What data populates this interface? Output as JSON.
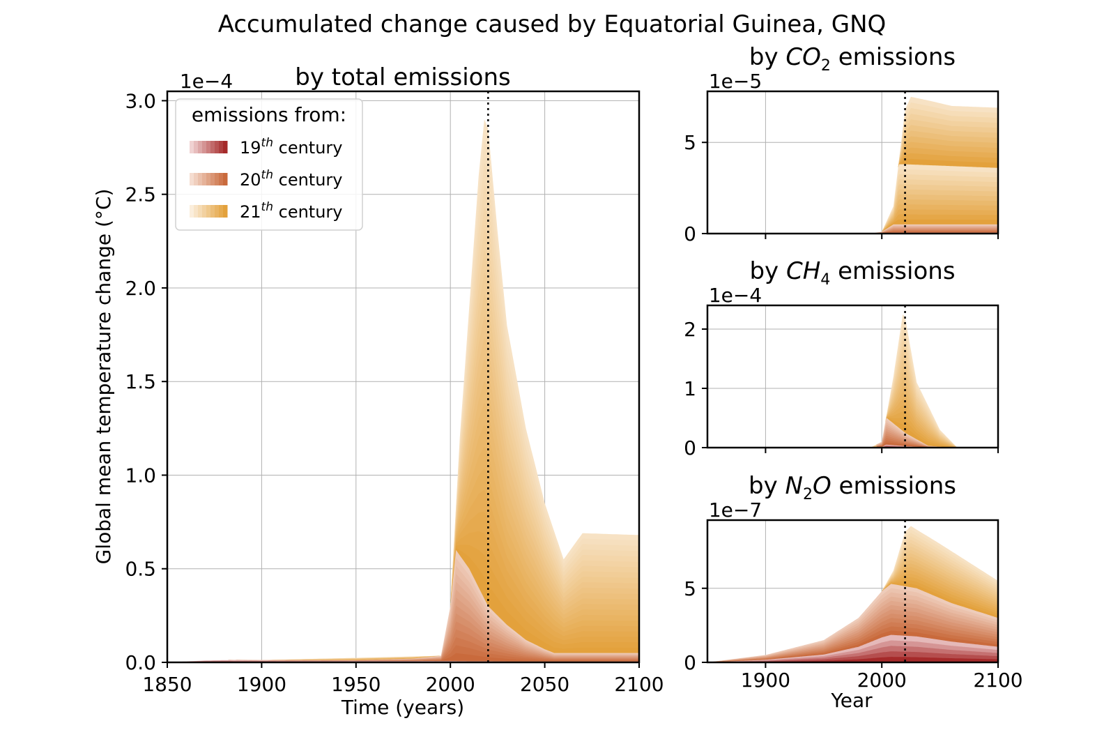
{
  "figure": {
    "suptitle": "Accumulated change caused by Equatorial Guinea, GNQ"
  },
  "legend": {
    "title": "emissions from:",
    "entries": [
      {
        "base": "19",
        "sup": "th",
        "rest": " century",
        "colors": [
          "#f0d2d2",
          "#d88c8c",
          "#a52a2a"
        ]
      },
      {
        "base": "20",
        "sup": "th",
        "rest": " century",
        "colors": [
          "#f5ddd0",
          "#e0a07e",
          "#c96a3c"
        ]
      },
      {
        "base": "21",
        "sup": "th",
        "rest": " century",
        "colors": [
          "#fbeedc",
          "#efc788",
          "#e3a13c"
        ]
      }
    ]
  },
  "colors": {
    "c19_light": "#f0d2d2",
    "c19_dark": "#a52a2a",
    "c20_light": "#f5ddd0",
    "c20_dark": "#c96a3c",
    "c21_light": "#fbeedc",
    "c21_dark": "#e3a13c",
    "grid": "#b0b0b0"
  },
  "chart_data": [
    {
      "type": "area",
      "title": "by total emissions",
      "xlabel": "Time (years)",
      "ylabel": "Global mean temperature change (°C)",
      "offset_text": "1e−4",
      "xlim": [
        1850,
        2100
      ],
      "ylim": [
        0,
        3.05
      ],
      "xticks": [
        1850,
        1900,
        1950,
        2000,
        2050,
        2100
      ],
      "ytick_labels": [
        "0.0",
        "0.5",
        "1.0",
        "1.5",
        "2.0",
        "2.5",
        "3.0"
      ],
      "yticks": [
        0,
        0.5,
        1.0,
        1.5,
        2.0,
        2.5,
        3.0
      ],
      "vline_x": 2020,
      "stacked_totals": {
        "x": [
          1850,
          1870,
          1880,
          1900,
          1950,
          1980,
          1995,
          2000,
          2003,
          2010,
          2020,
          2030,
          2040,
          2050,
          2055,
          2100
        ],
        "19th_century": [
          0,
          0.01,
          0.012,
          0.01,
          0.008,
          0.008,
          0.007,
          0.007,
          0.007,
          0.006,
          0.006,
          0.005,
          0.005,
          0.005,
          0.005,
          0.005
        ],
        "through_20th_century": [
          0,
          0.01,
          0.012,
          0.012,
          0.012,
          0.02,
          0.035,
          0.3,
          0.6,
          0.5,
          0.3,
          0.2,
          0.12,
          0.07,
          0.05,
          0.05
        ]
      },
      "total_curve": {
        "x": [
          1850,
          1995,
          2000,
          2005,
          2015,
          2018,
          2020,
          2025,
          2030,
          2040,
          2050,
          2060,
          2070,
          2100
        ],
        "y": [
          0,
          0.035,
          0.3,
          1.2,
          2.6,
          2.9,
          2.85,
          2.3,
          1.8,
          1.25,
          0.85,
          0.55,
          0.69,
          0.68
        ]
      }
    },
    {
      "type": "area",
      "title_prefix": "by ",
      "title_main": "CO",
      "title_sub": "2",
      "title_suffix": " emissions",
      "offset_text": "1e−5",
      "xlim": [
        1850,
        2100
      ],
      "ylim": [
        0,
        7.8
      ],
      "yticks": [
        0,
        5
      ],
      "ytick_labels": [
        "0",
        "5"
      ],
      "vline_x": 2020,
      "total_curve": {
        "x": [
          1850,
          1990,
          2000,
          2010,
          2020,
          2025,
          2040,
          2060,
          2100
        ],
        "y": [
          0,
          0,
          0.1,
          1.5,
          6.8,
          7.5,
          7.3,
          7.0,
          6.9
        ]
      },
      "through_20th_century": {
        "x": [
          1850,
          1990,
          2000,
          2010,
          2100
        ],
        "y": [
          0,
          0,
          0.1,
          0.5,
          0.5
        ]
      },
      "through_2010": {
        "x": [
          1850,
          2000,
          2005,
          2010,
          2020,
          2100
        ],
        "y": [
          0,
          0.1,
          1.5,
          3.8,
          3.8,
          3.6
        ]
      }
    },
    {
      "type": "area",
      "title_prefix": "by ",
      "title_main": "CH",
      "title_sub": "4",
      "title_suffix": " emissions",
      "offset_text": "1e−4",
      "xlim": [
        1850,
        2100
      ],
      "ylim": [
        0,
        2.4
      ],
      "yticks": [
        0,
        1,
        2
      ],
      "ytick_labels": [
        "0",
        "1",
        "2"
      ],
      "vline_x": 2020,
      "total_curve": {
        "x": [
          1850,
          1990,
          2000,
          2010,
          2018,
          2020,
          2030,
          2050,
          2065,
          2100
        ],
        "y": [
          0,
          0,
          0.1,
          1.2,
          2.25,
          2.2,
          1.1,
          0.3,
          0,
          0
        ]
      },
      "through_20th_century": {
        "x": [
          1850,
          1995,
          2003,
          2020,
          2040,
          2060,
          2100
        ],
        "y": [
          0,
          0,
          0.52,
          0.25,
          0.03,
          0,
          0
        ]
      }
    },
    {
      "type": "area",
      "title_prefix": "by ",
      "title_main": "N",
      "title_sub": "2",
      "title_mid": "O",
      "title_suffix": " emissions",
      "offset_text": "1e−7",
      "xlabel": "Year",
      "xlim": [
        1850,
        2100
      ],
      "ylim": [
        0,
        9.6
      ],
      "xticks": [
        1900,
        2000,
        2100
      ],
      "yticks": [
        0,
        5
      ],
      "ytick_labels": [
        "0",
        "5"
      ],
      "vline_x": 2020,
      "total_curve": {
        "x": [
          1850,
          1900,
          1950,
          1980,
          2000,
          2010,
          2020,
          2025,
          2050,
          2100
        ],
        "y": [
          0,
          0.5,
          1.5,
          3.0,
          4.8,
          6.2,
          8.8,
          9.2,
          8.0,
          5.5
        ]
      },
      "through_20th_century": {
        "x": [
          1850,
          1900,
          1950,
          1980,
          2000,
          2008,
          2030,
          2060,
          2100
        ],
        "y": [
          0,
          0.5,
          1.5,
          3.0,
          4.8,
          5.3,
          5.0,
          4.0,
          3.0
        ]
      }
    }
  ]
}
